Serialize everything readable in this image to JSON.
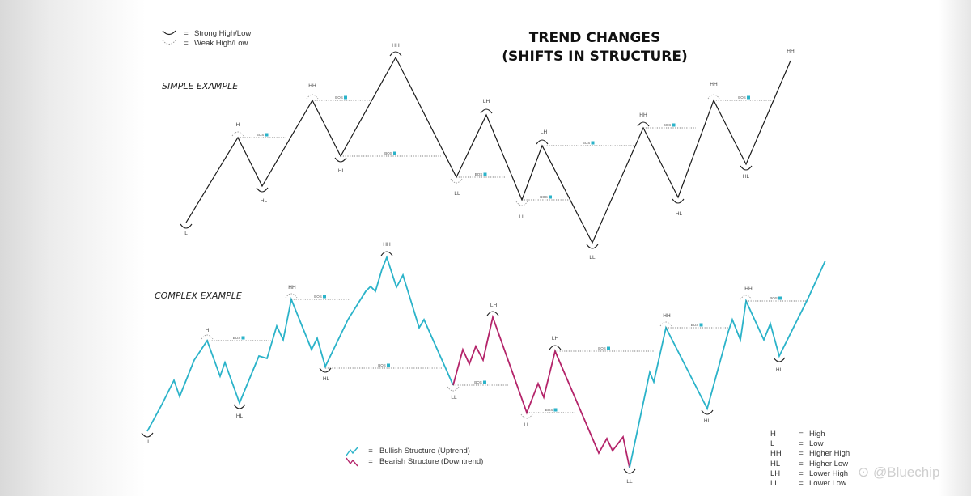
{
  "title": {
    "line1": "TREND CHANGES",
    "line2": "(SHIFTS IN STRUCTURE)"
  },
  "legend_top": [
    {
      "symbol": "strong-arc-icon",
      "eq": "=",
      "text": "Strong High/Low"
    },
    {
      "symbol": "weak-arc-icon",
      "eq": "=",
      "text": "Weak High/Low"
    }
  ],
  "simple": {
    "label": "SIMPLE EXAMPLE",
    "line_color": "#1a1a1a",
    "pivot_labels": [
      "L",
      "H",
      "HL",
      "HH",
      "HL",
      "HH",
      "LL",
      "LH",
      "LL",
      "LH",
      "LL",
      "HH",
      "HL",
      "HH",
      "HL",
      "HH"
    ],
    "bos_label": "BOS"
  },
  "complex": {
    "label": "COMPLEX EXAMPLE",
    "bull_color": "#2bb3c9",
    "bear_color": "#b4246a",
    "pivot_labels": [
      "L",
      "H",
      "HL",
      "HH",
      "HL",
      "HH",
      "LL",
      "LH",
      "LL",
      "LH",
      "LL",
      "HH",
      "HL",
      "HH",
      "HL"
    ],
    "bos_label": "BOS"
  },
  "legend_bottom": [
    {
      "symbol": "bullish-zigzag-icon",
      "eq": "=",
      "text": "Bullish Structure (Uptrend)",
      "color": "#2bb3c9"
    },
    {
      "symbol": "bearish-zigzag-icon",
      "eq": "=",
      "text": "Bearish Structure (Downtrend)",
      "color": "#b4246a"
    }
  ],
  "abbreviations": [
    {
      "key": "H",
      "eq": "=",
      "value": "High"
    },
    {
      "key": "L",
      "eq": "=",
      "value": "Low"
    },
    {
      "key": "HH",
      "eq": "=",
      "value": "Higher High"
    },
    {
      "key": "HL",
      "eq": "=",
      "value": "Higher Low"
    },
    {
      "key": "LH",
      "eq": "=",
      "value": "Lower High"
    },
    {
      "key": "LL",
      "eq": "=",
      "value": "Lower Low"
    }
  ],
  "watermark": "⊙ @Bluechip"
}
